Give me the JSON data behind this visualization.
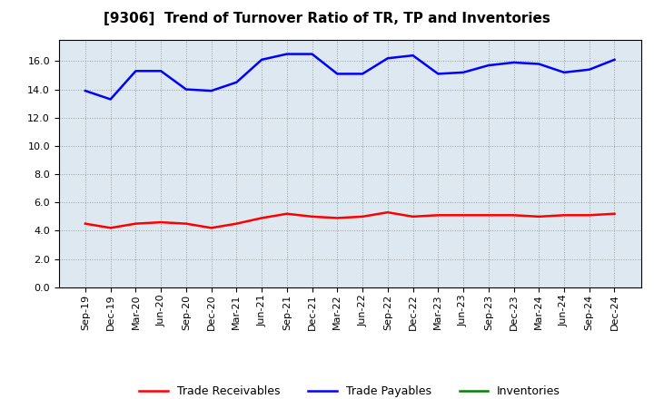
{
  "title": "[9306]  Trend of Turnover Ratio of TR, TP and Inventories",
  "x_labels": [
    "Sep-19",
    "Dec-19",
    "Mar-20",
    "Jun-20",
    "Sep-20",
    "Dec-20",
    "Mar-21",
    "Jun-21",
    "Sep-21",
    "Dec-21",
    "Mar-22",
    "Jun-22",
    "Sep-22",
    "Dec-22",
    "Mar-23",
    "Jun-23",
    "Sep-23",
    "Dec-23",
    "Mar-24",
    "Jun-24",
    "Sep-24",
    "Dec-24"
  ],
  "trade_receivables": [
    4.5,
    4.2,
    4.5,
    4.6,
    4.5,
    4.2,
    4.5,
    4.9,
    5.2,
    5.0,
    4.9,
    5.0,
    5.3,
    5.0,
    5.1,
    5.1,
    5.1,
    5.1,
    5.0,
    5.1,
    5.1,
    5.2
  ],
  "trade_payables": [
    13.9,
    13.3,
    15.3,
    15.3,
    14.0,
    13.9,
    14.5,
    16.1,
    16.5,
    16.5,
    15.1,
    15.1,
    16.2,
    16.4,
    15.1,
    15.2,
    15.7,
    15.9,
    15.8,
    15.2,
    15.4,
    16.1
  ],
  "inventories": [
    0.0,
    0.0,
    0.0,
    0.0,
    0.0,
    0.0,
    0.0,
    0.0,
    0.0,
    0.0,
    0.0,
    0.0,
    0.0,
    0.0,
    0.0,
    0.0,
    0.0,
    0.0,
    0.0,
    0.0,
    0.0,
    0.0
  ],
  "tr_color": "#ff0000",
  "tp_color": "#0000ff",
  "inv_color": "#008000",
  "background_color": "#ffffff",
  "plot_bg_color": "#dde8f0",
  "grid_color": "#888888",
  "ylim": [
    0.0,
    17.5
  ],
  "yticks": [
    0.0,
    2.0,
    4.0,
    6.0,
    8.0,
    10.0,
    12.0,
    14.0,
    16.0
  ],
  "title_fontsize": 11,
  "legend_fontsize": 9,
  "tick_fontsize": 8
}
